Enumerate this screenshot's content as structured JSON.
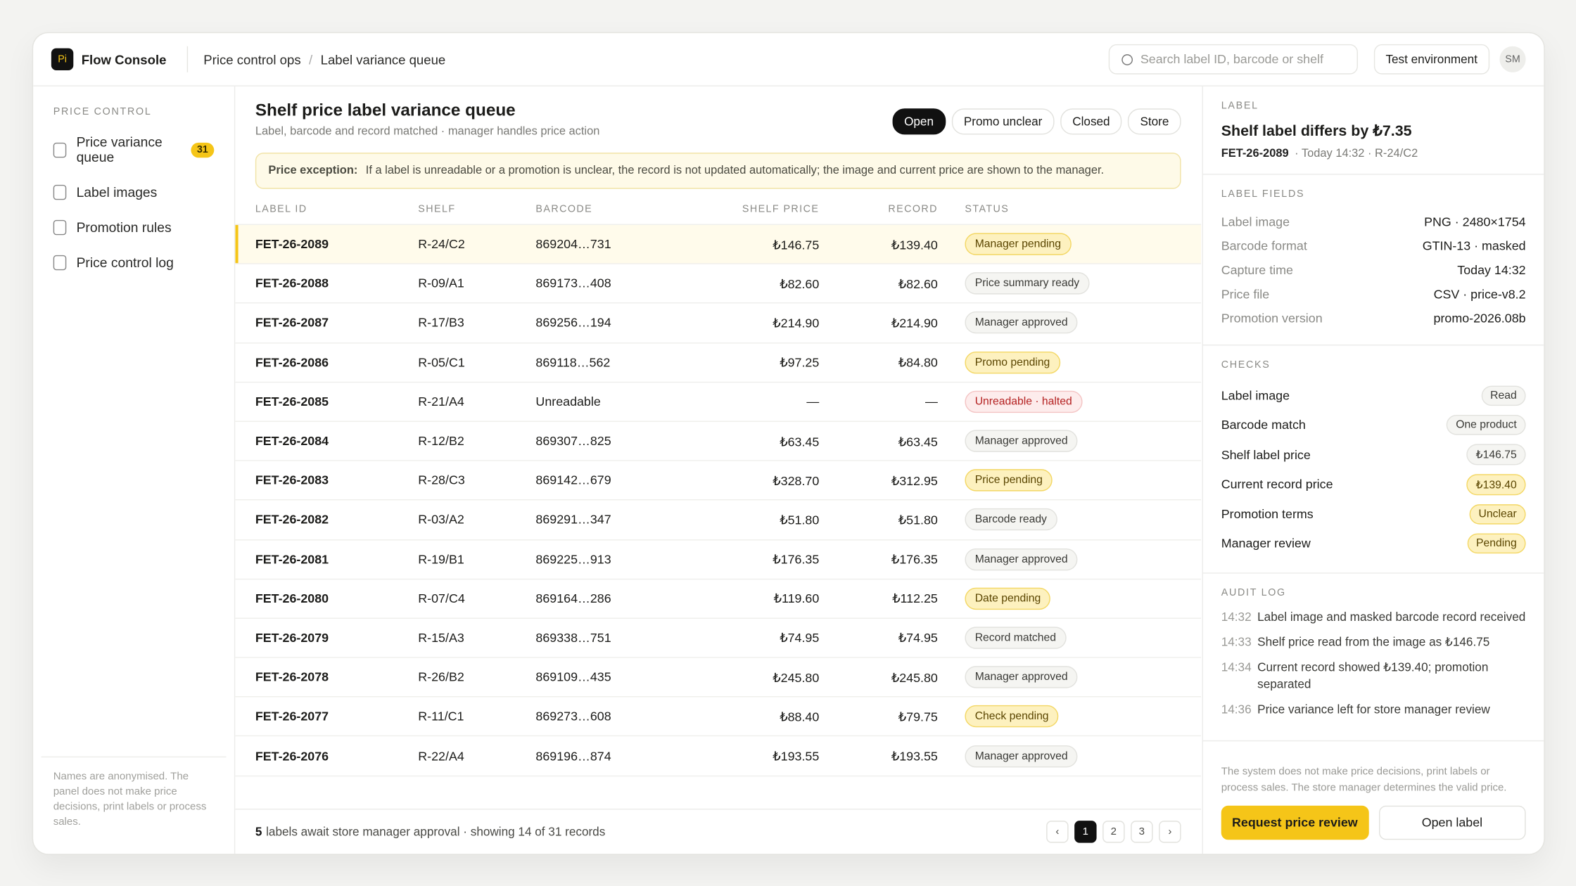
{
  "header": {
    "logo": "Pi",
    "app": "Flow Console",
    "breadcrumb": [
      "Price control ops",
      "Label variance queue"
    ],
    "breadcrumb_separator": "/",
    "search_placeholder": "Search label ID, barcode or shelf",
    "environment": "Test environment",
    "avatar": "SM"
  },
  "sidebar": {
    "section": "PRICE CONTROL",
    "items": [
      {
        "label": "Price variance queue",
        "badge": "31"
      },
      {
        "label": "Label images"
      },
      {
        "label": "Promotion rules"
      },
      {
        "label": "Price control log"
      }
    ],
    "note": "Names are anonymised. The panel does not make price decisions, print labels or process sales."
  },
  "queue": {
    "title": "Shelf price label variance queue",
    "subtitle": "Label, barcode and record matched · manager handles price action",
    "filters": [
      "Open",
      "Promo unclear",
      "Closed",
      "Store"
    ],
    "notice_label": "Price exception:",
    "notice": "If a label is unreadable or a promotion is unclear, the record is not updated automatically; the image and current price are shown to the manager.",
    "columns": [
      "LABEL ID",
      "SHELF",
      "BARCODE",
      "SHELF PRICE",
      "RECORD",
      "STATUS"
    ],
    "rows": [
      {
        "id": "FET-26-2089",
        "shelf": "R-24/C2",
        "barcode": "869204…731",
        "shelf_price": "₺146.75",
        "record": "₺139.40",
        "status": "Manager pending",
        "tone": "warn"
      },
      {
        "id": "FET-26-2088",
        "shelf": "R-09/A1",
        "barcode": "869173…408",
        "shelf_price": "₺82.60",
        "record": "₺82.60",
        "status": "Price summary ready",
        "tone": "neutral"
      },
      {
        "id": "FET-26-2087",
        "shelf": "R-17/B3",
        "barcode": "869256…194",
        "shelf_price": "₺214.90",
        "record": "₺214.90",
        "status": "Manager approved",
        "tone": "neutral"
      },
      {
        "id": "FET-26-2086",
        "shelf": "R-05/C1",
        "barcode": "869118…562",
        "shelf_price": "₺97.25",
        "record": "₺84.80",
        "status": "Promo pending",
        "tone": "warn"
      },
      {
        "id": "FET-26-2085",
        "shelf": "R-21/A4",
        "barcode": "Unreadable",
        "shelf_price": "—",
        "record": "—",
        "status": "Unreadable · halted",
        "tone": "error"
      },
      {
        "id": "FET-26-2084",
        "shelf": "R-12/B2",
        "barcode": "869307…825",
        "shelf_price": "₺63.45",
        "record": "₺63.45",
        "status": "Manager approved",
        "tone": "neutral"
      },
      {
        "id": "FET-26-2083",
        "shelf": "R-28/C3",
        "barcode": "869142…679",
        "shelf_price": "₺328.70",
        "record": "₺312.95",
        "status": "Price pending",
        "tone": "warn"
      },
      {
        "id": "FET-26-2082",
        "shelf": "R-03/A2",
        "barcode": "869291…347",
        "shelf_price": "₺51.80",
        "record": "₺51.80",
        "status": "Barcode ready",
        "tone": "neutral"
      },
      {
        "id": "FET-26-2081",
        "shelf": "R-19/B1",
        "barcode": "869225…913",
        "shelf_price": "₺176.35",
        "record": "₺176.35",
        "status": "Manager approved",
        "tone": "neutral"
      },
      {
        "id": "FET-26-2080",
        "shelf": "R-07/C4",
        "barcode": "869164…286",
        "shelf_price": "₺119.60",
        "record": "₺112.25",
        "status": "Date pending",
        "tone": "warn"
      },
      {
        "id": "FET-26-2079",
        "shelf": "R-15/A3",
        "barcode": "869338…751",
        "shelf_price": "₺74.95",
        "record": "₺74.95",
        "status": "Record matched",
        "tone": "neutral"
      },
      {
        "id": "FET-26-2078",
        "shelf": "R-26/B2",
        "barcode": "869109…435",
        "shelf_price": "₺245.80",
        "record": "₺245.80",
        "status": "Manager approved",
        "tone": "neutral"
      },
      {
        "id": "FET-26-2077",
        "shelf": "R-11/C1",
        "barcode": "869273…608",
        "shelf_price": "₺88.40",
        "record": "₺79.75",
        "status": "Check pending",
        "tone": "warn"
      },
      {
        "id": "FET-26-2076",
        "shelf": "R-22/A4",
        "barcode": "869196…874",
        "shelf_price": "₺193.55",
        "record": "₺193.55",
        "status": "Manager approved",
        "tone": "neutral"
      }
    ],
    "footer_count": "5",
    "footer_text": "labels await store manager approval · showing 14 of 31 records",
    "pages": [
      "‹",
      "1",
      "2",
      "3",
      "›"
    ]
  },
  "detail": {
    "eyebrow": "LABEL",
    "title": "Shelf label differs by ₺7.35",
    "id": "FET-26-2089",
    "meta": "·  Today 14:32 · R-24/C2",
    "fields_title": "LABEL FIELDS",
    "fields": [
      [
        "Label image",
        "PNG · 2480×1754"
      ],
      [
        "Barcode format",
        "GTIN-13 · masked"
      ],
      [
        "Capture time",
        "Today 14:32"
      ],
      [
        "Price file",
        "CSV · price-v8.2"
      ],
      [
        "Promotion version",
        "promo-2026.08b"
      ]
    ],
    "checks_title": "CHECKS",
    "checks": [
      {
        "label": "Label image",
        "value": "Read",
        "tone": "neutral"
      },
      {
        "label": "Barcode match",
        "value": "One product",
        "tone": "neutral"
      },
      {
        "label": "Shelf label price",
        "value": "₺146.75",
        "tone": "neutral"
      },
      {
        "label": "Current record price",
        "value": "₺139.40",
        "tone": "warn"
      },
      {
        "label": "Promotion terms",
        "value": "Unclear",
        "tone": "warn"
      },
      {
        "label": "Manager review",
        "value": "Pending",
        "tone": "warn"
      }
    ],
    "audit_title": "AUDIT LOG",
    "audit": [
      [
        "14:32",
        "Label image and masked barcode record received"
      ],
      [
        "14:33",
        "Shelf price read from the image as ₺146.75"
      ],
      [
        "14:34",
        "Current record showed ₺139.40; promotion separated"
      ],
      [
        "14:36",
        "Price variance left for store manager review"
      ]
    ],
    "note": "The system does not make price decisions, print labels or process sales. The store manager determines the valid price.",
    "primary": "Request price review",
    "secondary": "Open label"
  }
}
